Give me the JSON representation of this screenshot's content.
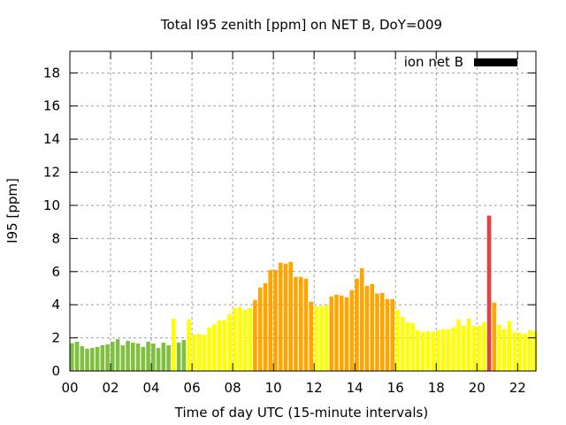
{
  "chart_data": {
    "type": "bar",
    "title": "Total I95 zenith [ppm] on NET B, DoY=009",
    "xlabel": "Time of day UTC (15-minute intervals)",
    "ylabel": "I95 [ppm]",
    "xlim": [
      0,
      22.9
    ],
    "ylim": [
      0,
      19.3
    ],
    "grid": true,
    "x_ticks": [
      0,
      2,
      4,
      6,
      8,
      10,
      12,
      14,
      16,
      18,
      20,
      22
    ],
    "x_tick_labels": [
      "00",
      "02",
      "04",
      "06",
      "08",
      "10",
      "12",
      "14",
      "16",
      "18",
      "20",
      "22"
    ],
    "y_ticks": [
      0,
      2,
      4,
      6,
      8,
      10,
      12,
      14,
      16,
      18
    ],
    "y_tick_labels": [
      "0",
      "2",
      "4",
      "6",
      "8",
      "10",
      "12",
      "14",
      "16",
      "18"
    ],
    "legend": {
      "label": "ion net B",
      "color": "#000000",
      "position": "top-right"
    },
    "interval_hours": 0.25,
    "values": [
      1.68,
      1.77,
      1.5,
      1.34,
      1.39,
      1.45,
      1.55,
      1.6,
      1.77,
      1.93,
      1.55,
      1.82,
      1.71,
      1.66,
      1.45,
      1.77,
      1.66,
      1.39,
      1.71,
      1.55,
      3.16,
      1.71,
      1.87,
      3.1,
      2.2,
      2.25,
      2.2,
      2.62,
      2.84,
      3.05,
      3.07,
      3.43,
      3.8,
      3.86,
      3.71,
      3.8,
      4.29,
      5.04,
      5.3,
      6.1,
      6.1,
      6.54,
      6.48,
      6.59,
      5.68,
      5.68,
      5.57,
      4.18,
      3.93,
      3.93,
      3.96,
      4.5,
      4.6,
      4.55,
      4.45,
      4.88,
      5.57,
      6.21,
      5.14,
      5.25,
      4.68,
      4.71,
      4.34,
      4.34,
      3.7,
      3.27,
      2.95,
      2.89,
      2.46,
      2.36,
      2.41,
      2.36,
      2.46,
      2.52,
      2.52,
      2.63,
      3.1,
      2.73,
      3.16,
      2.73,
      2.73,
      2.95,
      9.38,
      4.13,
      2.79,
      2.52,
      3.0,
      2.36,
      2.3,
      2.25,
      2.46,
      2.41
    ],
    "color_thresholds": [
      {
        "max": 2,
        "color": "#80c040"
      },
      {
        "max": 4,
        "color": "#ffff00"
      },
      {
        "max": 9,
        "color": "#ffa500"
      },
      {
        "max": 100,
        "color": "#e84040"
      }
    ]
  }
}
